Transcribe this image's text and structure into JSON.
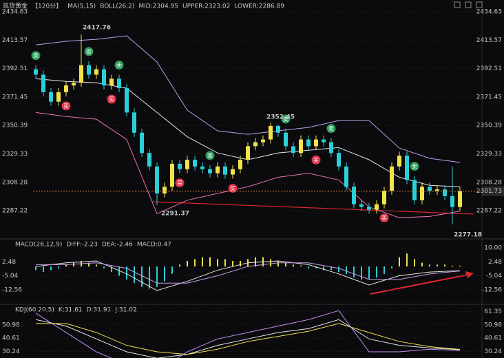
{
  "chart_data": [
    {
      "type": "candlestick",
      "title": "现货黄金",
      "period": "【120分】",
      "indicators": [
        {
          "text": "MA(5,15)",
          "color": "#e6e6e6"
        },
        {
          "text": "BOLL(26,2)",
          "color": "#e6e6e6"
        },
        {
          "text": "MID:2304.95",
          "color": "#f2e34a"
        },
        {
          "text": "UPPER:2323.02",
          "color": "#b8a2f2"
        },
        {
          "text": "LOWER:2286.89",
          "color": "#f06fb0"
        }
      ],
      "open": [
        2392,
        2388,
        2375,
        2368,
        2375,
        2380,
        2382,
        2395,
        2388,
        2392,
        2380,
        2385,
        2378,
        2360,
        2345,
        2330,
        2320,
        2300,
        2305,
        2322,
        2318,
        2325,
        2320,
        2318,
        2315,
        2320,
        2314,
        2318,
        2325,
        2335,
        2338,
        2340,
        2350,
        2345,
        2335,
        2330,
        2340,
        2335,
        2340,
        2338,
        2330,
        2320,
        2305,
        2292,
        2290,
        2288,
        2292,
        2302,
        2320,
        2328,
        2310,
        2295,
        2305,
        2302,
        2303,
        2298,
        2290
      ],
      "high": [
        2395,
        2391,
        2378,
        2378,
        2383,
        2385,
        2417.76,
        2398,
        2395,
        2395,
        2388,
        2388,
        2381,
        2363,
        2348,
        2333,
        2323,
        2308,
        2325,
        2325,
        2328,
        2328,
        2323,
        2321,
        2323,
        2323,
        2321,
        2328,
        2338,
        2341,
        2343,
        2352.45,
        2351,
        2348,
        2338,
        2343,
        2343,
        2343,
        2343,
        2341,
        2333,
        2323,
        2308,
        2295,
        2293,
        2295,
        2305,
        2323,
        2331,
        2331,
        2313,
        2308,
        2308,
        2306,
        2306,
        2320,
        2305
      ],
      "low": [
        2385,
        2372,
        2365,
        2365,
        2372,
        2377,
        2379,
        2385,
        2385,
        2377,
        2377,
        2375,
        2357,
        2342,
        2327,
        2317,
        2291.37,
        2297,
        2302,
        2315,
        2315,
        2317,
        2315,
        2312,
        2312,
        2311,
        2311,
        2315,
        2322,
        2332,
        2335,
        2337,
        2342,
        2332,
        2327,
        2327,
        2332,
        2332,
        2335,
        2327,
        2317,
        2302,
        2289,
        2287,
        2285,
        2285,
        2289,
        2299,
        2317,
        2307,
        2292,
        2292,
        2299,
        2299,
        2295,
        2277.18,
        2287
      ],
      "close": [
        2388,
        2375,
        2368,
        2375,
        2380,
        2382,
        2395,
        2388,
        2392,
        2380,
        2385,
        2378,
        2360,
        2345,
        2330,
        2320,
        2300,
        2305,
        2322,
        2318,
        2325,
        2320,
        2318,
        2315,
        2320,
        2314,
        2318,
        2325,
        2335,
        2338,
        2340,
        2350,
        2345,
        2335,
        2330,
        2340,
        2335,
        2340,
        2338,
        2330,
        2320,
        2305,
        2292,
        2290,
        2288,
        2292,
        2302,
        2320,
        2328,
        2310,
        2295,
        2305,
        2302,
        2303,
        2298,
        2290,
        2301.73
      ],
      "up_color": "#f2e34a",
      "down_color": "#2ccfd8",
      "band_x": [
        0,
        4,
        8,
        12,
        16,
        20,
        24,
        28,
        32,
        36,
        40,
        44,
        48,
        52,
        56
      ],
      "bands": [
        {
          "color": "#b8a2f2",
          "values": [
            2410,
            2412.7,
            2414.2,
            2416.8,
            2397.4,
            2361.7,
            2346.4,
            2343.8,
            2346.4,
            2348.9,
            2354,
            2354,
            2333.6,
            2326,
            2323.02
          ]
        },
        {
          "color": "#e6e6e6",
          "values": [
            2385,
            2383,
            2382,
            2378,
            2360,
            2342,
            2330,
            2325,
            2330,
            2332,
            2334,
            2325,
            2312,
            2306,
            2304.95
          ]
        },
        {
          "color": "#f06fb0",
          "values": [
            2360,
            2357,
            2355,
            2340,
            2285,
            2295,
            2300,
            2305,
            2312,
            2315,
            2310,
            2290,
            2282,
            2283,
            2286.89
          ]
        }
      ],
      "markers": [
        {
          "index": 0,
          "label": "卖"
        },
        {
          "index": 4,
          "label": "买"
        },
        {
          "index": 7,
          "label": "卖"
        },
        {
          "index": 10,
          "label": "买"
        },
        {
          "index": 11,
          "label": "卖"
        },
        {
          "index": 19,
          "label": "买"
        },
        {
          "index": 23,
          "label": "卖"
        },
        {
          "index": 26,
          "label": "买"
        },
        {
          "index": 33,
          "label": "卖"
        },
        {
          "index": 37,
          "label": "买"
        },
        {
          "index": 39,
          "label": "卖"
        },
        {
          "index": 46,
          "label": "买"
        },
        {
          "index": 50,
          "label": "卖"
        }
      ],
      "ylim": [
        2267.37,
        2440.75
      ],
      "yticks": [
        2434.63,
        2413.57,
        2392.51,
        2371.45,
        2350.39,
        2329.33,
        2308.28,
        2287.22
      ]
    },
    {
      "type": "macd",
      "title": "MACD(26,12,9)",
      "labels": [
        {
          "text": "DIFF:-2.23",
          "color": "#e6e6e6"
        },
        {
          "text": "DEA:-2.46",
          "color": "#f2e34a"
        },
        {
          "text": "MACD:0.47",
          "color": "#c58cf0"
        }
      ],
      "histogram": [
        -2,
        -3,
        -2,
        -1,
        1,
        2,
        3,
        2,
        1,
        -1,
        -3,
        -5,
        -7,
        -9,
        -11,
        -12,
        -11,
        -8,
        -4,
        1,
        3,
        4,
        5,
        5,
        4,
        4,
        3,
        3,
        4,
        5,
        5,
        4,
        3,
        2,
        1,
        0.5,
        -1,
        -1,
        -2,
        -2,
        -3,
        -4,
        -6,
        -7,
        -7,
        -6,
        -4,
        -1,
        5,
        7,
        4,
        2,
        1,
        1,
        1,
        0.5,
        0.47
      ],
      "up_color": "#f2e34a",
      "down_color": "#2ccfd8",
      "x": [
        0,
        4,
        8,
        12,
        16,
        20,
        24,
        28,
        32,
        36,
        40,
        44,
        48,
        52,
        56
      ],
      "series": [
        {
          "color": "#e6e6e6",
          "values": [
            0,
            2,
            3,
            -4,
            -13,
            -8,
            -2,
            2,
            3,
            1,
            -4,
            -10,
            -5,
            -3,
            -2.23
          ]
        },
        {
          "color": "#c8a0e8",
          "values": [
            1,
            1,
            2,
            -1,
            -9,
            -9,
            -5,
            0,
            2,
            2,
            -1,
            -7,
            -7,
            -4,
            -2.46
          ]
        }
      ],
      "ylim": [
        -19.7,
        13.8
      ],
      "yticks": [
        {
          "value": 10,
          "label": "10.00"
        },
        2.48,
        -5.04,
        -12.56
      ]
    },
    {
      "type": "kdj",
      "title": "KDJ(60,20,5)",
      "labels": [
        {
          "text": "K:31.61",
          "color": "#e6e6e6"
        },
        {
          "text": "D:31.91",
          "color": "#f2e34a"
        },
        {
          "text": "J:31.02",
          "color": "#c58cf0"
        }
      ],
      "x": [
        0,
        4,
        8,
        12,
        16,
        20,
        24,
        28,
        32,
        36,
        40,
        44,
        48,
        52,
        56
      ],
      "series": [
        {
          "color": "#e6e6e6",
          "values": [
            55,
            50,
            40,
            30,
            25,
            28,
            35,
            40,
            45,
            48,
            55,
            40,
            35,
            33,
            31.61
          ]
        },
        {
          "color": "#f2e34a",
          "values": [
            52,
            52,
            45,
            35,
            30,
            28,
            32,
            38,
            42,
            46,
            52,
            45,
            38,
            34,
            31.91
          ]
        },
        {
          "color": "#c58cf0",
          "values": [
            60,
            45,
            30,
            20,
            15,
            30,
            40,
            45,
            50,
            55,
            62,
            30,
            30,
            32,
            31.02
          ]
        }
      ],
      "ylim": [
        25.2,
        65.3
      ],
      "yticks": [
        61.35,
        50.98,
        40.61,
        30.24
      ]
    }
  ]
}
